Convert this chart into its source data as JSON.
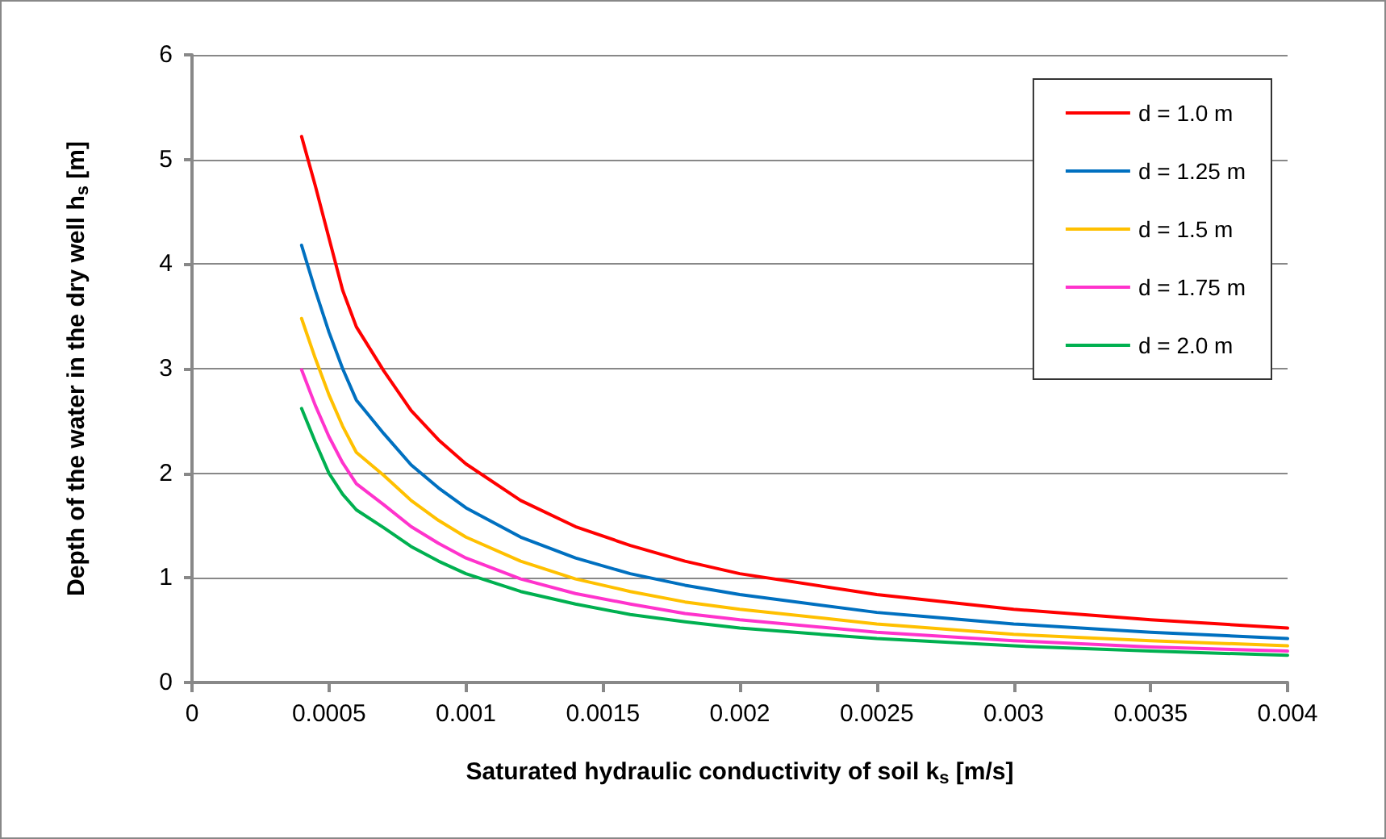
{
  "chart_data": {
    "type": "line",
    "xlabel": "Saturated hydraulic conductivity of soil k$_{s}$ [m/s]",
    "ylabel": "Depth of the water in the dry well h$_{s}$ [m]",
    "x": [
      0.0004,
      0.00045,
      0.0005,
      0.00055,
      0.0006,
      0.0007,
      0.0008,
      0.0009,
      0.001,
      0.0012,
      0.0014,
      0.0016,
      0.0018,
      0.002,
      0.0025,
      0.003,
      0.0035,
      0.004
    ],
    "series": [
      {
        "name": "d = 1.0 m",
        "color": "#ff0000",
        "values": [
          5.22,
          4.75,
          4.25,
          3.75,
          3.4,
          2.98,
          2.6,
          2.32,
          2.09,
          1.74,
          1.49,
          1.31,
          1.16,
          1.04,
          0.84,
          0.7,
          0.6,
          0.52
        ]
      },
      {
        "name": "d = 1.25 m",
        "color": "#0070c0",
        "values": [
          4.18,
          3.75,
          3.35,
          3.0,
          2.7,
          2.38,
          2.08,
          1.86,
          1.67,
          1.39,
          1.19,
          1.04,
          0.93,
          0.84,
          0.67,
          0.56,
          0.48,
          0.42
        ]
      },
      {
        "name": "d = 1.5 m",
        "color": "#ffc000",
        "values": [
          3.48,
          3.1,
          2.75,
          2.45,
          2.2,
          1.98,
          1.74,
          1.55,
          1.39,
          1.16,
          0.99,
          0.87,
          0.77,
          0.7,
          0.56,
          0.46,
          0.4,
          0.35
        ]
      },
      {
        "name": "d = 1.75 m",
        "color": "#ff33cc",
        "values": [
          2.99,
          2.65,
          2.35,
          2.1,
          1.9,
          1.7,
          1.49,
          1.33,
          1.19,
          0.99,
          0.85,
          0.75,
          0.66,
          0.6,
          0.48,
          0.4,
          0.34,
          0.3
        ]
      },
      {
        "name": "d = 2.0 m",
        "color": "#00b050",
        "values": [
          2.62,
          2.3,
          2.0,
          1.8,
          1.65,
          1.48,
          1.3,
          1.16,
          1.04,
          0.87,
          0.75,
          0.65,
          0.58,
          0.52,
          0.42,
          0.35,
          0.3,
          0.26
        ]
      }
    ],
    "xlim": [
      0,
      0.004
    ],
    "xticks": [
      0,
      0.0005,
      0.001,
      0.0015,
      0.002,
      0.0025,
      0.003,
      0.0035,
      0.004
    ],
    "ylim": [
      0,
      6
    ],
    "yticks": [
      0,
      1,
      2,
      3,
      4,
      5,
      6
    ],
    "grid": "y",
    "legend": "top right",
    "marker": "none",
    "line_style": "solid"
  }
}
